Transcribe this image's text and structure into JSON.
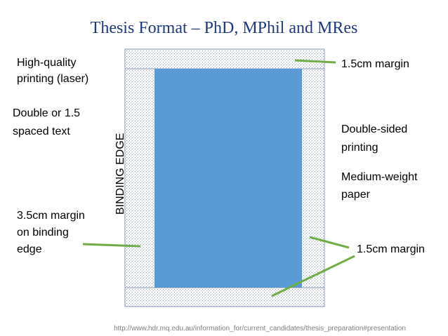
{
  "title": "Thesis Format – PhD, MPhil and MRes",
  "left_notes": {
    "printing": [
      "High-quality",
      "printing (laser)"
    ],
    "spacing": [
      "Double or 1.5",
      "spaced text"
    ],
    "binding_margin": [
      "3.5cm margin",
      "on binding",
      "edge"
    ]
  },
  "right_notes": {
    "top_margin": "1.5cm margin",
    "sides": [
      "Double-sided",
      "printing"
    ],
    "paper": [
      "Medium-weight",
      "paper"
    ],
    "bottom_margin": "1.5cm margin"
  },
  "binding_edge": "BINDING EDGE",
  "source_url": "http://www.hdr.mq.edu.au/information_for/current_candidates/thesis_preparation#presentation"
}
